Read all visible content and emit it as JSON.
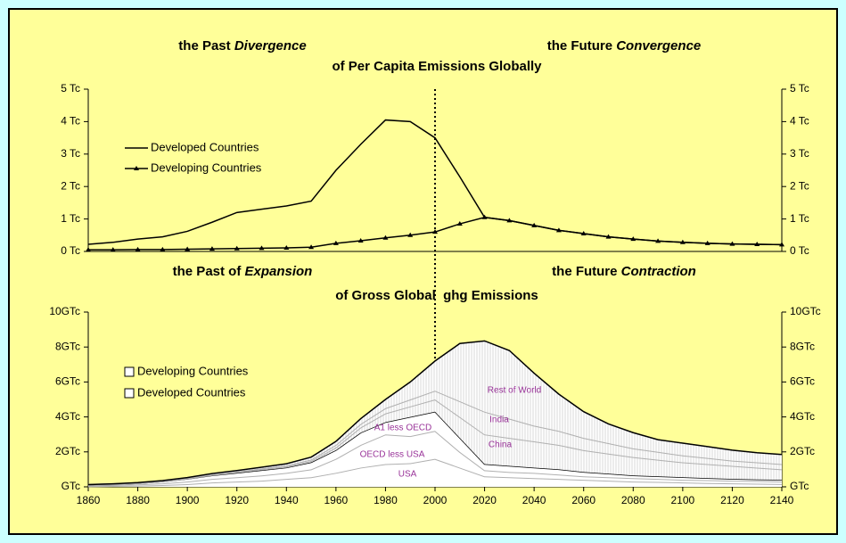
{
  "chart_data": [
    {
      "type": "line",
      "title": "of Per Capita Emissions Globally",
      "headings": [
        {
          "text": "the Past ",
          "emphasis": "Divergence"
        },
        {
          "text": "the Future ",
          "emphasis": "Convergence"
        }
      ],
      "x": [
        1860,
        1870,
        1880,
        1890,
        1900,
        1910,
        1920,
        1930,
        1940,
        1950,
        1960,
        1970,
        1980,
        1990,
        2000,
        2010,
        2020,
        2030,
        2040,
        2050,
        2060,
        2070,
        2080,
        2090,
        2100,
        2110,
        2120,
        2130,
        2140
      ],
      "series": [
        {
          "name": "Developed Countries",
          "color": "#000000",
          "values": [
            0.22,
            0.28,
            0.38,
            0.45,
            0.62,
            0.9,
            1.2,
            1.3,
            1.4,
            1.55,
            2.5,
            3.3,
            4.05,
            4.0,
            3.5,
            2.3,
            1.05,
            0.95,
            0.8,
            0.65,
            0.55,
            0.45,
            0.38,
            0.32,
            0.28,
            0.25,
            0.23,
            0.22,
            0.21
          ]
        },
        {
          "name": "Developing Countries",
          "color": "#000000",
          "marker": "triangle",
          "values": [
            0.05,
            0.05,
            0.06,
            0.06,
            0.07,
            0.08,
            0.09,
            0.1,
            0.11,
            0.13,
            0.25,
            0.33,
            0.42,
            0.5,
            0.6,
            0.85,
            1.05,
            0.95,
            0.8,
            0.65,
            0.55,
            0.45,
            0.38,
            0.32,
            0.28,
            0.25,
            0.23,
            0.22,
            0.21
          ]
        }
      ],
      "xlim": [
        1860,
        2140
      ],
      "ylim": [
        0,
        5
      ],
      "yticks": [
        {
          "value": 0,
          "label": "0 Tc"
        },
        {
          "value": 1,
          "label": "1 Tc"
        },
        {
          "value": 2,
          "label": "2 Tc"
        },
        {
          "value": 3,
          "label": "3 Tc"
        },
        {
          "value": 4,
          "label": "4 Tc"
        },
        {
          "value": 5,
          "label": "5 Tc"
        }
      ],
      "legend": "upper left",
      "vline": 2000
    },
    {
      "type": "stacked_area",
      "title": "of Gross Global  ghg Emissions",
      "headings": [
        {
          "text": "the Past of ",
          "emphasis": "Expansion"
        },
        {
          "text": "the Future ",
          "emphasis": "Contraction"
        }
      ],
      "x": [
        1860,
        1870,
        1880,
        1890,
        1900,
        1910,
        1920,
        1930,
        1940,
        1950,
        1960,
        1970,
        1980,
        1990,
        2000,
        2010,
        2020,
        2030,
        2040,
        2050,
        2060,
        2070,
        2080,
        2090,
        2100,
        2110,
        2120,
        2130,
        2140
      ],
      "series": [
        {
          "name": "USA",
          "color": "#b0b0b0",
          "fill": "#ffffff",
          "values": [
            0.03,
            0.05,
            0.07,
            0.1,
            0.15,
            0.25,
            0.3,
            0.35,
            0.45,
            0.55,
            0.8,
            1.1,
            1.3,
            1.35,
            1.6,
            1.1,
            0.6,
            0.55,
            0.5,
            0.45,
            0.4,
            0.35,
            0.3,
            0.28,
            0.25,
            0.22,
            0.2,
            0.18,
            0.16
          ]
        },
        {
          "name": "OECD less USA",
          "color": "#b0b0b0",
          "fill": "#ffffff",
          "values": [
            0.04,
            0.05,
            0.07,
            0.1,
            0.15,
            0.2,
            0.25,
            0.3,
            0.35,
            0.45,
            0.8,
            1.3,
            1.7,
            1.55,
            1.6,
            0.9,
            0.35,
            0.3,
            0.3,
            0.25,
            0.2,
            0.2,
            0.2,
            0.17,
            0.15,
            0.16,
            0.15,
            0.15,
            0.14
          ]
        },
        {
          "name": "A1 less OECD",
          "color": "#000000",
          "fill": "#ffffff",
          "values": [
            0.03,
            0.04,
            0.06,
            0.1,
            0.15,
            0.2,
            0.25,
            0.3,
            0.3,
            0.4,
            0.5,
            0.7,
            0.7,
            1.1,
            1.1,
            0.8,
            0.35,
            0.35,
            0.3,
            0.3,
            0.25,
            0.2,
            0.15,
            0.15,
            0.15,
            0.12,
            0.1,
            0.09,
            0.1
          ]
        },
        {
          "name": "China",
          "color": "#b0b0b0",
          "fill": "hatch",
          "values": [
            0.01,
            0.01,
            0.01,
            0.02,
            0.02,
            0.03,
            0.04,
            0.05,
            0.06,
            0.08,
            0.15,
            0.3,
            0.5,
            0.6,
            0.7,
            1.2,
            1.7,
            1.6,
            1.5,
            1.4,
            1.25,
            1.15,
            1.05,
            0.95,
            0.85,
            0.8,
            0.75,
            0.68,
            0.6
          ]
        },
        {
          "name": "India",
          "color": "#b0b0b0",
          "fill": "hatch",
          "values": [
            0.01,
            0.01,
            0.01,
            0.01,
            0.02,
            0.03,
            0.04,
            0.05,
            0.06,
            0.08,
            0.15,
            0.2,
            0.3,
            0.4,
            0.5,
            0.9,
            1.3,
            1.1,
            0.9,
            0.8,
            0.7,
            0.6,
            0.5,
            0.45,
            0.4,
            0.35,
            0.3,
            0.3,
            0.3
          ]
        },
        {
          "name": "Rest of World",
          "color": "#000000",
          "fill": "hatch",
          "values": [
            0.01,
            0.01,
            0.02,
            0.03,
            0.04,
            0.05,
            0.05,
            0.07,
            0.1,
            0.14,
            0.2,
            0.3,
            0.5,
            1.0,
            1.7,
            3.3,
            4.05,
            3.9,
            3.0,
            2.1,
            1.5,
            1.1,
            0.9,
            0.7,
            0.7,
            0.65,
            0.6,
            0.55,
            0.55
          ]
        }
      ],
      "legend": {
        "position": "upper left",
        "entries": [
          "Developing Countries",
          "Developed Countries"
        ]
      },
      "xlim": [
        1860,
        2140
      ],
      "xticks": [
        1860,
        1880,
        1900,
        1920,
        1940,
        1960,
        1980,
        2000,
        2020,
        2040,
        2060,
        2080,
        2100,
        2120,
        2140
      ],
      "ylim": [
        0,
        10
      ],
      "yticks": [
        {
          "value": 0,
          "label": "GTc"
        },
        {
          "value": 2,
          "label": "2GTc"
        },
        {
          "value": 4,
          "label": "4GTc"
        },
        {
          "value": 6,
          "label": "6GTc"
        },
        {
          "value": 8,
          "label": "8GTc"
        },
        {
          "value": 10,
          "label": "10GTc"
        }
      ]
    }
  ]
}
